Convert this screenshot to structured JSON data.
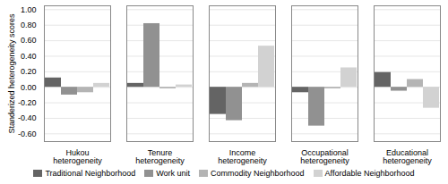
{
  "chart_data": {
    "type": "bar",
    "categories": [
      "Hukou\nheterogeneity",
      "Tenure\nheterogeneity",
      "Income\nheterogeneity",
      "Occupational\nheterogeneity",
      "Educational\nheterogeneity"
    ],
    "series": [
      {
        "name": "Traditional Neighborhood",
        "color": "#646464",
        "values": [
          0.12,
          0.05,
          -0.35,
          -0.07,
          0.19
        ]
      },
      {
        "name": "Work unit",
        "color": "#919191",
        "values": [
          -0.1,
          0.82,
          -0.43,
          -0.5,
          -0.05
        ]
      },
      {
        "name": "Commodity Neighborhood",
        "color": "#b4b4b4",
        "values": [
          -0.07,
          -0.02,
          0.05,
          -0.02,
          0.1
        ]
      },
      {
        "name": "Affordable Neighborhood",
        "color": "#d2d2d2",
        "values": [
          0.05,
          0.03,
          0.53,
          0.25,
          -0.27
        ]
      }
    ],
    "ylabel": "Standerized heterogeneity scores",
    "ylim": [
      -0.7,
      1.05
    ],
    "yticks": [
      {
        "value": -0.6,
        "label": "-0.60"
      },
      {
        "value": -0.4,
        "label": "-0.40"
      },
      {
        "value": -0.2,
        "label": "-0.20"
      },
      {
        "value": 0.0,
        "label": "0.00"
      },
      {
        "value": 0.2,
        "label": "0.20"
      },
      {
        "value": 0.4,
        "label": "0.40"
      },
      {
        "value": 0.6,
        "label": "0.60"
      },
      {
        "value": 0.8,
        "label": "0.80"
      },
      {
        "value": 1.0,
        "label": "1.00"
      }
    ],
    "grid": true,
    "legend": "bottom"
  }
}
